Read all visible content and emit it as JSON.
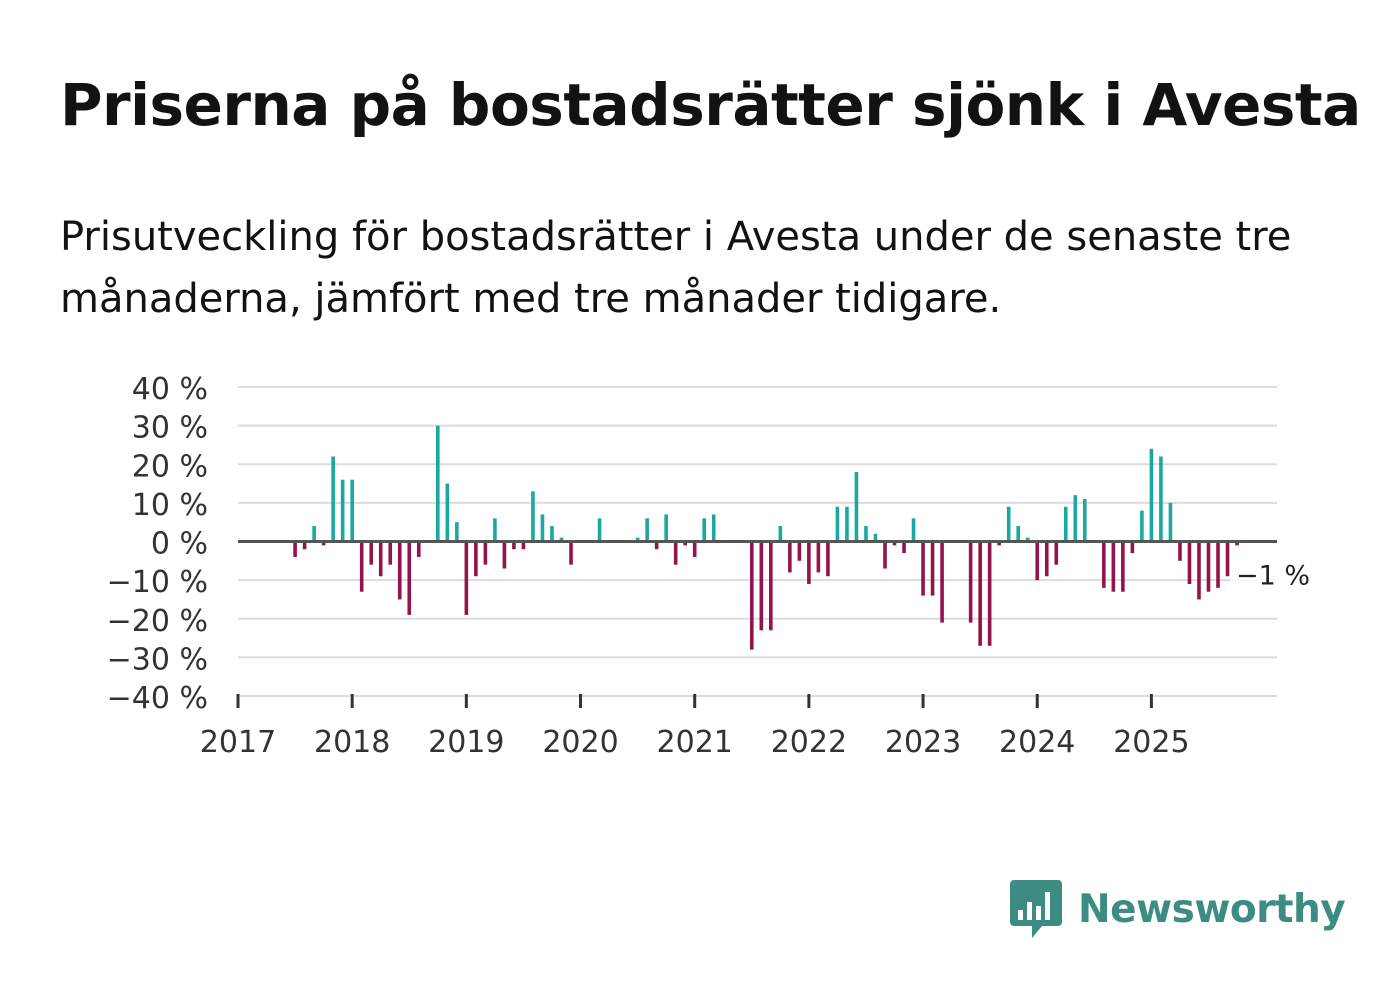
{
  "title": "Priserna på bostadsrätter sjönk i Avesta",
  "subtitle": "Prisutveckling för bostadsrätter i Avesta under de senaste tre månaderna, jämfört med tre månader tidigare.",
  "logo": {
    "text": "Newsworthy",
    "icon": "newsworthy-bar-chart-icon",
    "color": "#3c8c84"
  },
  "colors": {
    "positive": "#1ba8a0",
    "negative": "#96124a",
    "grid": "#dcdcdc",
    "zero": "#555555",
    "text": "#333333"
  },
  "chart_data": {
    "type": "bar",
    "title": "Priserna på bostadsrätter sjönk i Avesta",
    "xlabel": "",
    "ylabel": "",
    "ylim": [
      -40,
      40
    ],
    "y_ticks": [
      {
        "value": 40,
        "label": "40 %"
      },
      {
        "value": 30,
        "label": "30 %"
      },
      {
        "value": 20,
        "label": "20 %"
      },
      {
        "value": 10,
        "label": "10 %"
      },
      {
        "value": 0,
        "label": "0 %"
      },
      {
        "value": -10,
        "label": "−10 %"
      },
      {
        "value": -20,
        "label": "−20 %"
      },
      {
        "value": -30,
        "label": "−30 %"
      },
      {
        "value": -40,
        "label": "−40 %"
      }
    ],
    "x_range": [
      2017,
      2026.1
    ],
    "x_ticks": [
      {
        "value": 2017,
        "label": "2017"
      },
      {
        "value": 2018,
        "label": "2018"
      },
      {
        "value": 2019,
        "label": "2019"
      },
      {
        "value": 2020,
        "label": "2020"
      },
      {
        "value": 2021,
        "label": "2021"
      },
      {
        "value": 2022,
        "label": "2022"
      },
      {
        "value": 2023,
        "label": "2023"
      },
      {
        "value": 2024,
        "label": "2024"
      },
      {
        "value": 2025,
        "label": "2025"
      }
    ],
    "series": [
      {
        "name": "Prisutveckling",
        "points": [
          {
            "x": "2017-07",
            "y": -4
          },
          {
            "x": "2017-08",
            "y": -2
          },
          {
            "x": "2017-09",
            "y": 4
          },
          {
            "x": "2017-10",
            "y": -1
          },
          {
            "x": "2017-11",
            "y": 22
          },
          {
            "x": "2017-12",
            "y": 16
          },
          {
            "x": "2018-01",
            "y": 16
          },
          {
            "x": "2018-02",
            "y": -13
          },
          {
            "x": "2018-03",
            "y": -6
          },
          {
            "x": "2018-04",
            "y": -9
          },
          {
            "x": "2018-05",
            "y": -6
          },
          {
            "x": "2018-06",
            "y": -15
          },
          {
            "x": "2018-07",
            "y": -19
          },
          {
            "x": "2018-08",
            "y": -4
          },
          {
            "x": "2018-10",
            "y": 30
          },
          {
            "x": "2018-11",
            "y": 15
          },
          {
            "x": "2018-12",
            "y": 5
          },
          {
            "x": "2019-01",
            "y": -19
          },
          {
            "x": "2019-02",
            "y": -9
          },
          {
            "x": "2019-03",
            "y": -6
          },
          {
            "x": "2019-04",
            "y": 6
          },
          {
            "x": "2019-05",
            "y": -7
          },
          {
            "x": "2019-06",
            "y": -2
          },
          {
            "x": "2019-07",
            "y": -2
          },
          {
            "x": "2019-08",
            "y": 13
          },
          {
            "x": "2019-09",
            "y": 7
          },
          {
            "x": "2019-10",
            "y": 4
          },
          {
            "x": "2019-11",
            "y": 1
          },
          {
            "x": "2019-12",
            "y": -6
          },
          {
            "x": "2020-03",
            "y": 6
          },
          {
            "x": "2020-05",
            "y": 0
          },
          {
            "x": "2020-07",
            "y": 1
          },
          {
            "x": "2020-08",
            "y": 6
          },
          {
            "x": "2020-09",
            "y": -2
          },
          {
            "x": "2020-10",
            "y": 7
          },
          {
            "x": "2020-11",
            "y": -6
          },
          {
            "x": "2020-12",
            "y": -1
          },
          {
            "x": "2021-01",
            "y": -4
          },
          {
            "x": "2021-02",
            "y": 6
          },
          {
            "x": "2021-03",
            "y": 7
          },
          {
            "x": "2021-07",
            "y": -28
          },
          {
            "x": "2021-08",
            "y": -23
          },
          {
            "x": "2021-09",
            "y": -23
          },
          {
            "x": "2021-10",
            "y": 4
          },
          {
            "x": "2021-11",
            "y": -8
          },
          {
            "x": "2021-12",
            "y": -5
          },
          {
            "x": "2022-01",
            "y": -11
          },
          {
            "x": "2022-02",
            "y": -8
          },
          {
            "x": "2022-03",
            "y": -9
          },
          {
            "x": "2022-04",
            "y": 9
          },
          {
            "x": "2022-05",
            "y": 9
          },
          {
            "x": "2022-06",
            "y": 18
          },
          {
            "x": "2022-07",
            "y": 4
          },
          {
            "x": "2022-08",
            "y": 2
          },
          {
            "x": "2022-09",
            "y": -7
          },
          {
            "x": "2022-10",
            "y": -1
          },
          {
            "x": "2022-11",
            "y": -3
          },
          {
            "x": "2022-12",
            "y": 6
          },
          {
            "x": "2023-01",
            "y": -14
          },
          {
            "x": "2023-02",
            "y": -14
          },
          {
            "x": "2023-03",
            "y": -21
          },
          {
            "x": "2023-06",
            "y": -21
          },
          {
            "x": "2023-07",
            "y": -27
          },
          {
            "x": "2023-08",
            "y": -27
          },
          {
            "x": "2023-09",
            "y": -1
          },
          {
            "x": "2023-10",
            "y": 9
          },
          {
            "x": "2023-11",
            "y": 4
          },
          {
            "x": "2023-12",
            "y": 1
          },
          {
            "x": "2024-01",
            "y": -10
          },
          {
            "x": "2024-02",
            "y": -9
          },
          {
            "x": "2024-03",
            "y": -6
          },
          {
            "x": "2024-04",
            "y": 9
          },
          {
            "x": "2024-05",
            "y": 12
          },
          {
            "x": "2024-06",
            "y": 11
          },
          {
            "x": "2024-08",
            "y": -12
          },
          {
            "x": "2024-09",
            "y": -13
          },
          {
            "x": "2024-10",
            "y": -13
          },
          {
            "x": "2024-11",
            "y": -3
          },
          {
            "x": "2024-12",
            "y": 8
          },
          {
            "x": "2025-01",
            "y": 24
          },
          {
            "x": "2025-02",
            "y": 22
          },
          {
            "x": "2025-03",
            "y": 10
          },
          {
            "x": "2025-04",
            "y": -5
          },
          {
            "x": "2025-05",
            "y": -11
          },
          {
            "x": "2025-06",
            "y": -15
          },
          {
            "x": "2025-07",
            "y": -13
          },
          {
            "x": "2025-08",
            "y": -12
          },
          {
            "x": "2025-09",
            "y": -9
          },
          {
            "x": "2025-10",
            "y": -1
          }
        ]
      }
    ],
    "annotations": [
      {
        "x": "2025-10",
        "y": -1,
        "text": "−1 %"
      }
    ]
  }
}
